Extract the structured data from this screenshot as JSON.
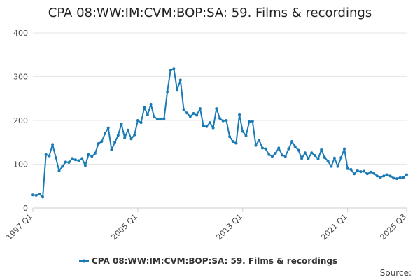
{
  "chart_data": {
    "type": "line",
    "title": "CPA 08:WW:IM:CVM:BOP:SA: 59. Films & recordings",
    "xlabel": "",
    "ylabel": "",
    "ylim": [
      0,
      400
    ],
    "yticks": [
      0,
      100,
      200,
      300,
      400
    ],
    "xtick_labels": [
      "1997 Q1",
      "2005 Q1",
      "2013 Q1",
      "2021 Q1",
      "2025 Q3"
    ],
    "grid": true,
    "legend_position": "bottom",
    "color": "#1a7ab5",
    "source_label": "Source:",
    "series": [
      {
        "name": "CPA 08:WW:IM:CVM:BOP:SA: 59. Films & recordings",
        "x": [
          "1997 Q1",
          "1997 Q2",
          "1997 Q3",
          "1997 Q4",
          "1998 Q1",
          "1998 Q2",
          "1998 Q3",
          "1998 Q4",
          "1999 Q1",
          "1999 Q2",
          "1999 Q3",
          "1999 Q4",
          "2000 Q1",
          "2000 Q2",
          "2000 Q3",
          "2000 Q4",
          "2001 Q1",
          "2001 Q2",
          "2001 Q3",
          "2001 Q4",
          "2002 Q1",
          "2002 Q2",
          "2002 Q3",
          "2002 Q4",
          "2003 Q1",
          "2003 Q2",
          "2003 Q3",
          "2003 Q4",
          "2004 Q1",
          "2004 Q2",
          "2004 Q3",
          "2004 Q4",
          "2005 Q1",
          "2005 Q2",
          "2005 Q3",
          "2005 Q4",
          "2006 Q1",
          "2006 Q2",
          "2006 Q3",
          "2006 Q4",
          "2007 Q1",
          "2007 Q2",
          "2007 Q3",
          "2007 Q4",
          "2008 Q1",
          "2008 Q2",
          "2008 Q3",
          "2008 Q4",
          "2009 Q1",
          "2009 Q2",
          "2009 Q3",
          "2009 Q4",
          "2010 Q1",
          "2010 Q2",
          "2010 Q3",
          "2010 Q4",
          "2011 Q1",
          "2011 Q2",
          "2011 Q3",
          "2011 Q4",
          "2012 Q1",
          "2012 Q2",
          "2012 Q3",
          "2012 Q4",
          "2013 Q1",
          "2013 Q2",
          "2013 Q3",
          "2013 Q4",
          "2014 Q1",
          "2014 Q2",
          "2014 Q3",
          "2014 Q4",
          "2015 Q1",
          "2015 Q2",
          "2015 Q3",
          "2015 Q4",
          "2016 Q1",
          "2016 Q2",
          "2016 Q3",
          "2016 Q4",
          "2017 Q1",
          "2017 Q2",
          "2017 Q3",
          "2017 Q4",
          "2018 Q1",
          "2018 Q2",
          "2018 Q3",
          "2018 Q4",
          "2019 Q1",
          "2019 Q2",
          "2019 Q3",
          "2019 Q4",
          "2020 Q1",
          "2020 Q2",
          "2020 Q3",
          "2020 Q4",
          "2021 Q1",
          "2021 Q2",
          "2021 Q3",
          "2021 Q4",
          "2022 Q1",
          "2022 Q2",
          "2022 Q3",
          "2022 Q4",
          "2023 Q1",
          "2023 Q2",
          "2023 Q3",
          "2023 Q4",
          "2024 Q1",
          "2024 Q2",
          "2024 Q3",
          "2024 Q4",
          "2025 Q1",
          "2025 Q2",
          "2025 Q3"
        ],
        "values": [
          30,
          29,
          32,
          25,
          122,
          119,
          145,
          115,
          85,
          95,
          105,
          104,
          113,
          110,
          108,
          113,
          97,
          122,
          118,
          125,
          147,
          152,
          170,
          183,
          133,
          150,
          166,
          192,
          160,
          178,
          158,
          167,
          200,
          195,
          230,
          213,
          237,
          208,
          203,
          203,
          204,
          265,
          315,
          318,
          270,
          292,
          225,
          217,
          209,
          216,
          212,
          227,
          188,
          186,
          195,
          183,
          227,
          205,
          199,
          200,
          163,
          152,
          148,
          213,
          175,
          165,
          197,
          198,
          143,
          155,
          137,
          135,
          122,
          118,
          125,
          137,
          121,
          118,
          135,
          152,
          140,
          132,
          113,
          126,
          113,
          126,
          120,
          112,
          133,
          115,
          107,
          95,
          114,
          95,
          115,
          135,
          90,
          88,
          78,
          85,
          83,
          84,
          78,
          82,
          79,
          73,
          70,
          73,
          76,
          73,
          68,
          67,
          69,
          70,
          76
        ]
      }
    ]
  }
}
